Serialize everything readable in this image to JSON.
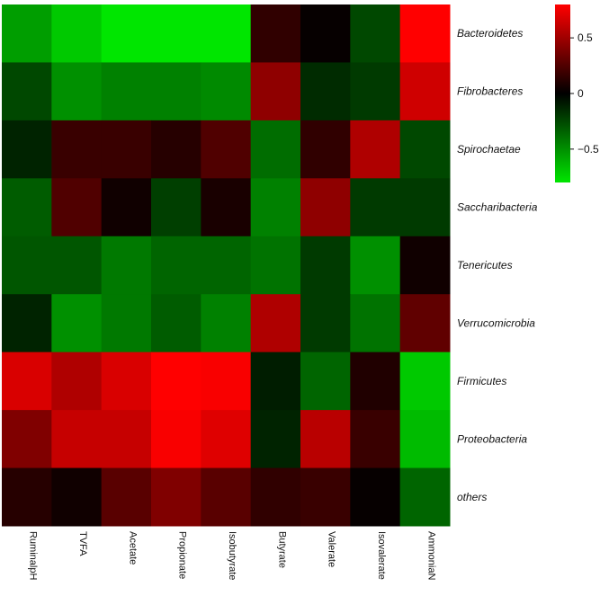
{
  "chart_data": {
    "type": "heatmap",
    "rows": [
      "Bacteroidetes",
      "Fibrobacteres",
      "Spirochaetae",
      "Saccharibacteria",
      "Tenericutes",
      "Verrucomicrobia",
      "Firmicutes",
      "Proteobacteria",
      "others"
    ],
    "columns": [
      "RuminalpH",
      "TVFA",
      "Acetate",
      "Propionate",
      "Isobutyrate",
      "Butyrate",
      "Valerate",
      "Isovalerate",
      "AmmoniaN"
    ],
    "values": [
      [
        -0.55,
        -0.7,
        -0.82,
        -0.85,
        -0.85,
        0.15,
        0.02,
        -0.25,
        0.85
      ],
      [
        -0.25,
        -0.5,
        -0.45,
        -0.45,
        -0.48,
        0.45,
        -0.15,
        -0.2,
        0.65
      ],
      [
        -0.12,
        0.18,
        0.18,
        0.12,
        0.25,
        -0.38,
        0.15,
        0.55,
        -0.25
      ],
      [
        -0.32,
        0.25,
        0.05,
        -0.22,
        0.08,
        -0.45,
        0.45,
        -0.2,
        -0.2
      ],
      [
        -0.3,
        -0.3,
        -0.42,
        -0.35,
        -0.35,
        -0.4,
        -0.2,
        -0.5,
        0.05
      ],
      [
        -0.12,
        -0.5,
        -0.42,
        -0.32,
        -0.45,
        0.55,
        -0.2,
        -0.4,
        0.3
      ],
      [
        0.68,
        0.55,
        0.68,
        0.88,
        0.78,
        -0.1,
        -0.35,
        0.1,
        -0.7
      ],
      [
        0.4,
        0.62,
        0.62,
        0.78,
        0.7,
        -0.12,
        0.58,
        0.18,
        -0.65
      ],
      [
        0.12,
        0.05,
        0.28,
        0.4,
        0.28,
        0.15,
        0.18,
        0.02,
        -0.35
      ]
    ],
    "colorbar": {
      "range": [
        -0.8,
        0.8
      ],
      "ticks": [
        0.5,
        0,
        -0.5
      ],
      "tick_labels": [
        "0.5",
        "0",
        "−0.5"
      ],
      "low_color": "#00e600",
      "mid_color": "#000000",
      "high_color": "#ff0000"
    },
    "grid": false,
    "legend_placement": "top-right"
  }
}
